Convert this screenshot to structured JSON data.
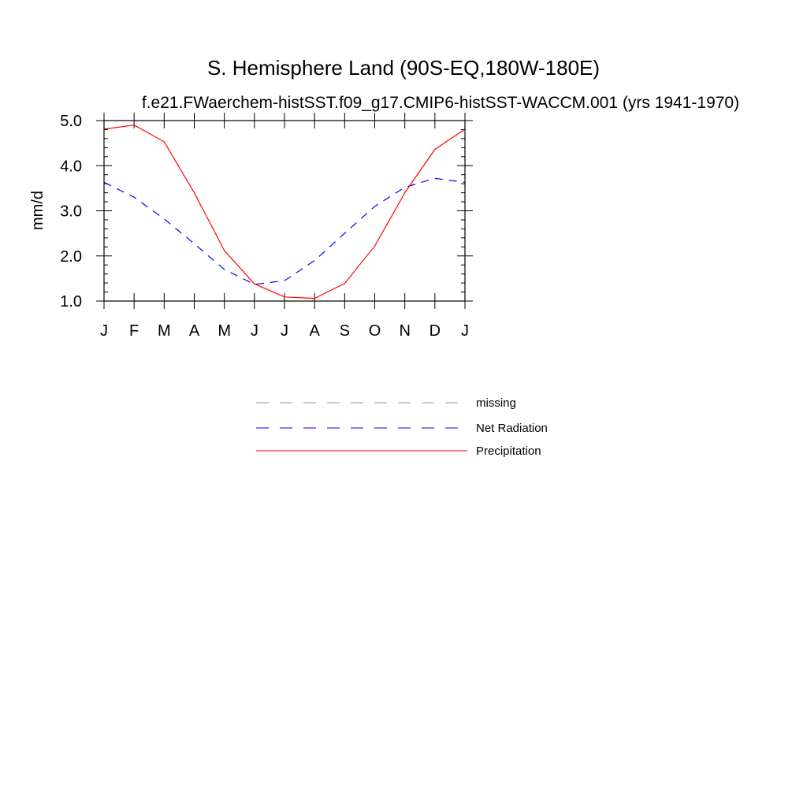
{
  "chart_data": {
    "type": "line",
    "title": "S. Hemisphere Land (90S-EQ,180W-180E)",
    "subtitle": "f.e21.FWaerchem-histSST.f09_g17.CMIP6-histSST-WACCM.001 (yrs 1941-1970)",
    "ylabel": "mm/d",
    "xlabel": "",
    "categories": [
      "J",
      "F",
      "M",
      "A",
      "M",
      "J",
      "J",
      "A",
      "S",
      "O",
      "N",
      "D",
      "J"
    ],
    "ylim": [
      1.0,
      5.0
    ],
    "yticks": [
      "1.0",
      "2.0",
      "3.0",
      "4.0",
      "5.0"
    ],
    "grid": false,
    "legend_position": "bottom-center",
    "series": [
      {
        "name": "Net Radiation",
        "color": "#0000ff",
        "dash": "dashed",
        "values": [
          3.63,
          3.3,
          2.82,
          2.27,
          1.7,
          1.37,
          1.45,
          1.9,
          2.5,
          3.1,
          3.52,
          3.72,
          3.63
        ]
      },
      {
        "name": "Precipitation",
        "color": "#ff0000",
        "dash": "solid",
        "values": [
          4.81,
          4.9,
          4.53,
          3.4,
          2.12,
          1.38,
          1.09,
          1.06,
          1.39,
          2.22,
          3.4,
          4.36,
          4.81
        ]
      }
    ],
    "legend": [
      {
        "label": "missing",
        "color": "#999999",
        "dash": "dashed"
      },
      {
        "label": "Net Radiation",
        "color": "#0000ff",
        "dash": "dashed"
      },
      {
        "label": "Precipitation",
        "color": "#ff0000",
        "dash": "solid"
      }
    ]
  }
}
